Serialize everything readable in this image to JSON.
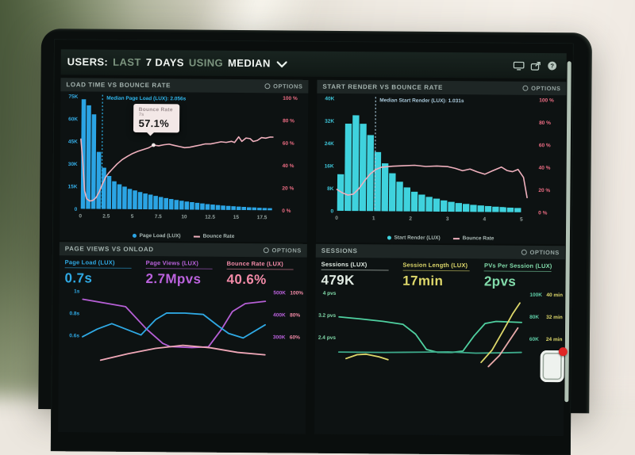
{
  "header": {
    "segments": [
      {
        "text": "USERS:",
        "emphasis": true
      },
      {
        "text": "LAST",
        "emphasis": false
      },
      {
        "text": "7 DAYS",
        "emphasis": true
      },
      {
        "text": "USING",
        "emphasis": false
      },
      {
        "text": "MEDIAN",
        "emphasis": true
      }
    ],
    "icons": [
      {
        "name": "display-icon"
      },
      {
        "name": "share-icon"
      },
      {
        "name": "help-icon",
        "glyph": "?"
      }
    ]
  },
  "panels": [
    {
      "title": "LOAD TIME VS BOUNCE RATE",
      "options_label": "OPTIONS"
    },
    {
      "title": "START RENDER VS BOUNCE RATE",
      "options_label": "OPTIONS"
    },
    {
      "title": "PAGE VIEWS VS ONLOAD",
      "options_label": "OPTIONS",
      "metrics": [
        {
          "label": "Page Load (LUX)",
          "value": "0.7s",
          "color": "#2fa9e4"
        },
        {
          "label": "Page Views (LUX)",
          "value": "2.7Mpvs",
          "color": "#bb62dd"
        },
        {
          "label": "Bounce Rate (LUX)",
          "value": "40.6%",
          "color": "#f38ba8"
        }
      ]
    },
    {
      "title": "SESSIONS",
      "options_label": "OPTIONS",
      "metrics": [
        {
          "label": "Sessions (LUX)",
          "value": "479K",
          "color": "#e2ece4"
        },
        {
          "label": "Session Length (LUX)",
          "value": "17min",
          "color": "#ddd76a"
        },
        {
          "label": "PVs Per Session (LUX)",
          "value": "2pvs",
          "color": "#82dcab"
        }
      ]
    }
  ],
  "chart_data": [
    {
      "type": "histogram_line",
      "panel": "LOAD TIME VS BOUNCE RATE",
      "x_max": 18.5,
      "x_step": 0.5,
      "ylim": [
        0,
        75
      ],
      "y_unit": "K",
      "y2lim": [
        0,
        100
      ],
      "yticks": [
        "75K",
        "60K",
        "45K",
        "30K",
        "15K",
        "0"
      ],
      "y2ticks": [
        "100 %",
        "80 %",
        "60 %",
        "40 %",
        "20 %",
        "0 %"
      ],
      "xticks": [
        0,
        2.5,
        5,
        7.5,
        10,
        12.5,
        15,
        17.5
      ],
      "axis_colors": {
        "y": "#35aee8",
        "y2": "#f06e85",
        "x": "#93a19e"
      },
      "bars": {
        "label": "Page Load (LUX)",
        "color": "#2ba4e4",
        "values_k": [
          73,
          69,
          63,
          38,
          27.5,
          22,
          18.5,
          16.5,
          15,
          13.5,
          12.5,
          11.5,
          10.5,
          9.8,
          9,
          8.3,
          7.6,
          7,
          6.4,
          5.9,
          5.4,
          5,
          4.6,
          4.2,
          3.8,
          3.5,
          3.2,
          2.9,
          2.7,
          2.5,
          2.3,
          2.1,
          1.9,
          1.8,
          1.6,
          1.5,
          1.4
        ]
      },
      "line": {
        "label": "Bounce Rate",
        "color": "#efb0bd",
        "points_x_pct": [
          [
            0,
            62
          ],
          [
            0.2,
            42
          ],
          [
            0.4,
            16
          ],
          [
            0.6,
            9
          ],
          [
            0.9,
            7
          ],
          [
            1.2,
            7.5
          ],
          [
            1.5,
            10
          ],
          [
            1.8,
            15
          ],
          [
            2.1,
            22
          ],
          [
            2.4,
            28
          ],
          [
            2.7,
            32
          ],
          [
            3,
            35
          ],
          [
            3.5,
            40
          ],
          [
            4,
            44
          ],
          [
            4.5,
            47
          ],
          [
            5,
            49.5
          ],
          [
            5.5,
            51.5
          ],
          [
            6,
            53
          ],
          [
            6.5,
            54.5
          ],
          [
            7,
            57.1
          ],
          [
            7.5,
            56.5
          ],
          [
            8,
            57.5
          ],
          [
            8.5,
            58
          ],
          [
            9,
            57
          ],
          [
            9.5,
            56
          ],
          [
            10,
            55
          ],
          [
            10.5,
            55.5
          ],
          [
            11,
            56.5
          ],
          [
            11.5,
            57.5
          ],
          [
            12,
            58.5
          ],
          [
            12.5,
            58.5
          ],
          [
            13,
            59.5
          ],
          [
            13.5,
            60.5
          ],
          [
            14,
            60
          ],
          [
            14.5,
            61
          ],
          [
            14.8,
            60
          ],
          [
            15.2,
            65
          ],
          [
            15.5,
            61
          ],
          [
            15.9,
            64
          ],
          [
            16.3,
            63.5
          ],
          [
            16.6,
            61
          ],
          [
            17,
            62
          ],
          [
            17.4,
            64.5
          ],
          [
            17.8,
            64
          ],
          [
            18.2,
            65
          ],
          [
            18.5,
            65
          ]
        ]
      },
      "median": {
        "label": "Median Page Load (LUX): 2.056s",
        "x": 2.056,
        "color": "#2fb7ee"
      },
      "tooltip": {
        "title": "Bounce Rate",
        "sub": "7s",
        "value": "57.1%",
        "x": 7,
        "y_pct": 57.1
      }
    },
    {
      "type": "histogram_line",
      "panel": "START RENDER VS BOUNCE RATE",
      "x_max": 5.2,
      "x_step": 0.2,
      "ylim": [
        0,
        40
      ],
      "y_unit": "K",
      "y2lim": [
        0,
        100
      ],
      "yticks": [
        "40K",
        "32K",
        "24K",
        "16K",
        "8K",
        "0"
      ],
      "y2ticks": [
        "100 %",
        "80 %",
        "60 %",
        "40 %",
        "20 %",
        "0 %"
      ],
      "xticks": [
        0,
        1,
        2,
        3,
        4,
        5
      ],
      "axis_colors": {
        "y": "#3fc9dd",
        "y2": "#f06e85",
        "x": "#93a19e"
      },
      "bars": {
        "label": "Start Render (LUX)",
        "color": "#3fd2dd",
        "values_k": [
          13,
          31,
          34,
          31,
          27,
          21,
          17,
          13.5,
          10.5,
          8.5,
          7,
          6,
          5.2,
          4.6,
          4,
          3.5,
          3.1,
          2.8,
          2.5,
          2.3,
          2.1,
          1.9,
          1.8,
          1.6,
          1.5
        ]
      },
      "line": {
        "label": "Bounce Rate",
        "color": "#efb0bd",
        "points_x_pct": [
          [
            0,
            19
          ],
          [
            0.15,
            16
          ],
          [
            0.3,
            14
          ],
          [
            0.45,
            15
          ],
          [
            0.6,
            20
          ],
          [
            0.75,
            27
          ],
          [
            0.9,
            33
          ],
          [
            1.05,
            37
          ],
          [
            1.2,
            39
          ],
          [
            1.5,
            40
          ],
          [
            1.8,
            40.5
          ],
          [
            2.1,
            41
          ],
          [
            2.4,
            40
          ],
          [
            2.7,
            40.5
          ],
          [
            3,
            40
          ],
          [
            3.2,
            38.5
          ],
          [
            3.4,
            36.5
          ],
          [
            3.6,
            38
          ],
          [
            3.8,
            35.5
          ],
          [
            4,
            33.5
          ],
          [
            4.2,
            36.5
          ],
          [
            4.45,
            40
          ],
          [
            4.6,
            37
          ],
          [
            4.75,
            36
          ],
          [
            4.9,
            38
          ],
          [
            5.05,
            31
          ],
          [
            5.15,
            13
          ]
        ]
      },
      "median": {
        "label": "Median Start Render (LUX): 1.031s",
        "x": 1.031,
        "color": "#a9c9db"
      },
      "tooltip": null
    },
    {
      "type": "multi_line",
      "panel": "PAGE VIEWS VS ONLOAD",
      "left_axis": {
        "labels": [
          "1s",
          "0.8s",
          "0.6s"
        ],
        "color": "#2fa9e4"
      },
      "right_axis": {
        "rows": [
          [
            "500K",
            "100%"
          ],
          [
            "400K",
            "80%"
          ],
          [
            "300K",
            "60%"
          ]
        ],
        "colors": [
          "#bb62dd",
          "#f38ba8"
        ]
      },
      "series": [
        {
          "name": "page-views",
          "color": "#b55fd5",
          "unit": "K",
          "range": [
            500,
            300
          ],
          "points": [
            [
              0,
              464
            ],
            [
              0.12,
              448
            ],
            [
              0.235,
              432
            ],
            [
              0.35,
              332
            ],
            [
              0.44,
              268
            ],
            [
              0.48,
              254
            ],
            [
              0.6,
              250
            ],
            [
              0.69,
              254
            ],
            [
              0.76,
              332
            ],
            [
              0.82,
              414
            ],
            [
              0.89,
              450
            ],
            [
              1,
              461
            ]
          ]
        },
        {
          "name": "page-load",
          "color": "#2fa9e4",
          "unit": "s",
          "range": [
            1.0,
            0.6
          ],
          "points": [
            [
              0,
              0.59
            ],
            [
              0.08,
              0.66
            ],
            [
              0.16,
              0.71
            ],
            [
              0.24,
              0.66
            ],
            [
              0.32,
              0.61
            ],
            [
              0.4,
              0.75
            ],
            [
              0.46,
              0.81
            ],
            [
              0.56,
              0.81
            ],
            [
              0.66,
              0.8
            ],
            [
              0.74,
              0.7
            ],
            [
              0.8,
              0.63
            ],
            [
              0.88,
              0.59
            ],
            [
              1,
              0.71
            ]
          ]
        },
        {
          "name": "bounce-rate",
          "color": "#f0a8b8",
          "unit": "%",
          "range": [
            100,
            60
          ],
          "points": [
            [
              0.1,
              38
            ],
            [
              0.25,
              44
            ],
            [
              0.4,
              49
            ],
            [
              0.55,
              52
            ],
            [
              0.7,
              50
            ],
            [
              0.85,
              46
            ],
            [
              1,
              44
            ]
          ]
        }
      ]
    },
    {
      "type": "multi_line",
      "panel": "SESSIONS",
      "left_axis": {
        "labels": [
          "4 pvs",
          "3.2 pvs",
          "2.4 pvs"
        ],
        "color": "#82dcab"
      },
      "right_axis": {
        "rows": [
          [
            "100K",
            "40 min"
          ],
          [
            "80K",
            "32 min"
          ],
          [
            "60K",
            "24 min"
          ]
        ],
        "colors": [
          "#5fcfa9",
          "#ddd76a"
        ]
      },
      "series": [
        {
          "name": "pvs-per-session",
          "color": "#4fd0a0",
          "unit": "pvs",
          "range": [
            4,
            2.4
          ],
          "points": [
            [
              0,
              3.15
            ],
            [
              0.12,
              3.08
            ],
            [
              0.24,
              3.0
            ],
            [
              0.35,
              2.9
            ],
            [
              0.42,
              2.55
            ],
            [
              0.48,
              2.0
            ],
            [
              0.54,
              1.9
            ],
            [
              0.62,
              1.9
            ],
            [
              0.68,
              1.95
            ],
            [
              0.74,
              2.5
            ],
            [
              0.8,
              2.95
            ],
            [
              0.86,
              3.03
            ],
            [
              1,
              3.0
            ]
          ]
        },
        {
          "name": "sessions",
          "color": "#3da98a",
          "unit": "K",
          "range": [
            100,
            60
          ],
          "points": [
            [
              0,
              47
            ],
            [
              0.25,
              47
            ],
            [
              0.45,
              47.5
            ],
            [
              0.6,
              48
            ],
            [
              0.75,
              47
            ],
            [
              0.9,
              47.5
            ],
            [
              1,
              48
            ]
          ]
        },
        {
          "name": "session-length-a",
          "color": "#ddd76a",
          "unit": "min",
          "range": [
            40,
            24
          ],
          "points": [
            [
              0.04,
              16.5
            ],
            [
              0.1,
              17.9
            ],
            [
              0.15,
              18.1
            ],
            [
              0.22,
              17.2
            ],
            [
              0.27,
              16.2
            ]
          ]
        },
        {
          "name": "session-length-b",
          "color": "#ddd76a",
          "unit": "min",
          "range": [
            40,
            24
          ],
          "points": [
            [
              0.78,
              15.5
            ],
            [
              0.84,
              20
            ],
            [
              0.9,
              27
            ],
            [
              0.95,
              33
            ],
            [
              0.99,
              37
            ]
          ]
        },
        {
          "name": "line-salmon",
          "color": "#e8a9a9",
          "unit": "min",
          "range": [
            40,
            24
          ],
          "points": [
            [
              0.82,
              14
            ],
            [
              0.88,
              18
            ],
            [
              0.93,
              23
            ],
            [
              0.98,
              28
            ]
          ]
        }
      ]
    }
  ],
  "overlay_icon": "app-overlay-icon"
}
